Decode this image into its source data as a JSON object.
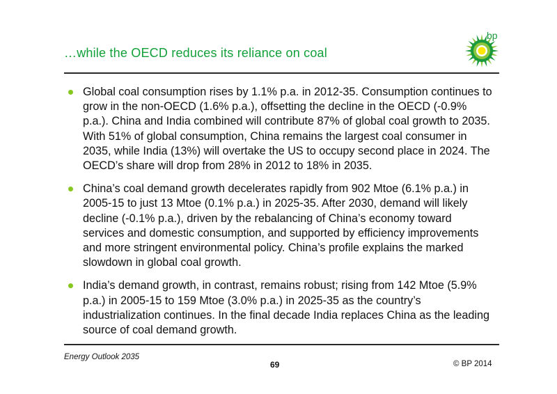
{
  "slide": {
    "title": "…while the OECD reduces its reliance on coal",
    "brand": "bp"
  },
  "bullets": [
    "Global coal consumption rises by 1.1% p.a. in 2012-35. Consumption continues to grow in the non-OECD (1.6% p.a.), offsetting the decline in the OECD (-0.9% p.a.). China and India combined will contribute 87% of global coal growth to 2035. With 51% of global consumption, China remains the largest coal consumer in 2035, while India (13%) will overtake the US to occupy second place in 2024. The OECD’s share will drop from 28% in 2012 to 18% in 2035.",
    "China’s coal demand growth decelerates rapidly from 902 Mtoe (6.1% p.a.) in 2005-15 to just 13 Mtoe (0.1% p.a.) in 2025-35. After 2030, demand will likely decline (-0.1% p.a.), driven by the rebalancing of China’s economy toward services and domestic consumption, and supported by efficiency improvements and more stringent environmental policy. China’s profile explains the marked slowdown in global coal growth.",
    "India’s demand growth, in contrast, remains robust; rising from 142 Mtoe (5.9% p.a.) in 2005-15 to 159 Mtoe (3.0% p.a.) in 2025-35 as the country’s industrialization continues. In the final decade India replaces China as the leading source of coal demand growth."
  ],
  "footer": {
    "left": "Energy Outlook 2035",
    "page": "69",
    "right": "© BP 2014"
  },
  "colors": {
    "title": "#12a03a",
    "bullet": "#86c820",
    "logo_green_dark": "#1a9a3c",
    "logo_green_light": "#8cc63f",
    "logo_yellow": "#ffe600"
  },
  "icons": {
    "logo": "bp-helios-logo-icon",
    "bullet": "round-bullet-icon"
  }
}
